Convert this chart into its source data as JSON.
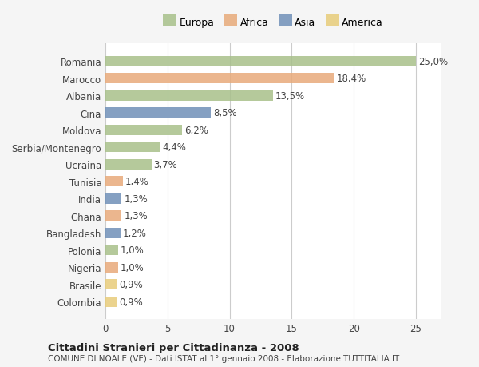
{
  "countries": [
    "Romania",
    "Marocco",
    "Albania",
    "Cina",
    "Moldova",
    "Serbia/Montenegro",
    "Ucraina",
    "Tunisia",
    "India",
    "Ghana",
    "Bangladesh",
    "Polonia",
    "Nigeria",
    "Brasile",
    "Colombia"
  ],
  "values": [
    25.0,
    18.4,
    13.5,
    8.5,
    6.2,
    4.4,
    3.7,
    1.4,
    1.3,
    1.3,
    1.2,
    1.0,
    1.0,
    0.9,
    0.9
  ],
  "labels": [
    "25,0%",
    "18,4%",
    "13,5%",
    "8,5%",
    "6,2%",
    "4,4%",
    "3,7%",
    "1,4%",
    "1,3%",
    "1,3%",
    "1,2%",
    "1,0%",
    "1,0%",
    "0,9%",
    "0,9%"
  ],
  "continents": [
    "Europa",
    "Africa",
    "Europa",
    "Asia",
    "Europa",
    "Europa",
    "Europa",
    "Africa",
    "Asia",
    "Africa",
    "Asia",
    "Europa",
    "Africa",
    "America",
    "America"
  ],
  "colors": {
    "Europa": "#a8c08a",
    "Africa": "#e8aa7a",
    "Asia": "#7090b8",
    "America": "#e8cc7a"
  },
  "legend_order": [
    "Europa",
    "Africa",
    "Asia",
    "America"
  ],
  "xlim": [
    0,
    27
  ],
  "xticks": [
    0,
    5,
    10,
    15,
    20,
    25
  ],
  "title": "Cittadini Stranieri per Cittadinanza - 2008",
  "subtitle": "COMUNE DI NOALE (VE) - Dati ISTAT al 1° gennaio 2008 - Elaborazione TUTTITALIA.IT",
  "bg_color": "#f5f5f5",
  "bar_bg_color": "#ffffff",
  "grid_color": "#cccccc"
}
